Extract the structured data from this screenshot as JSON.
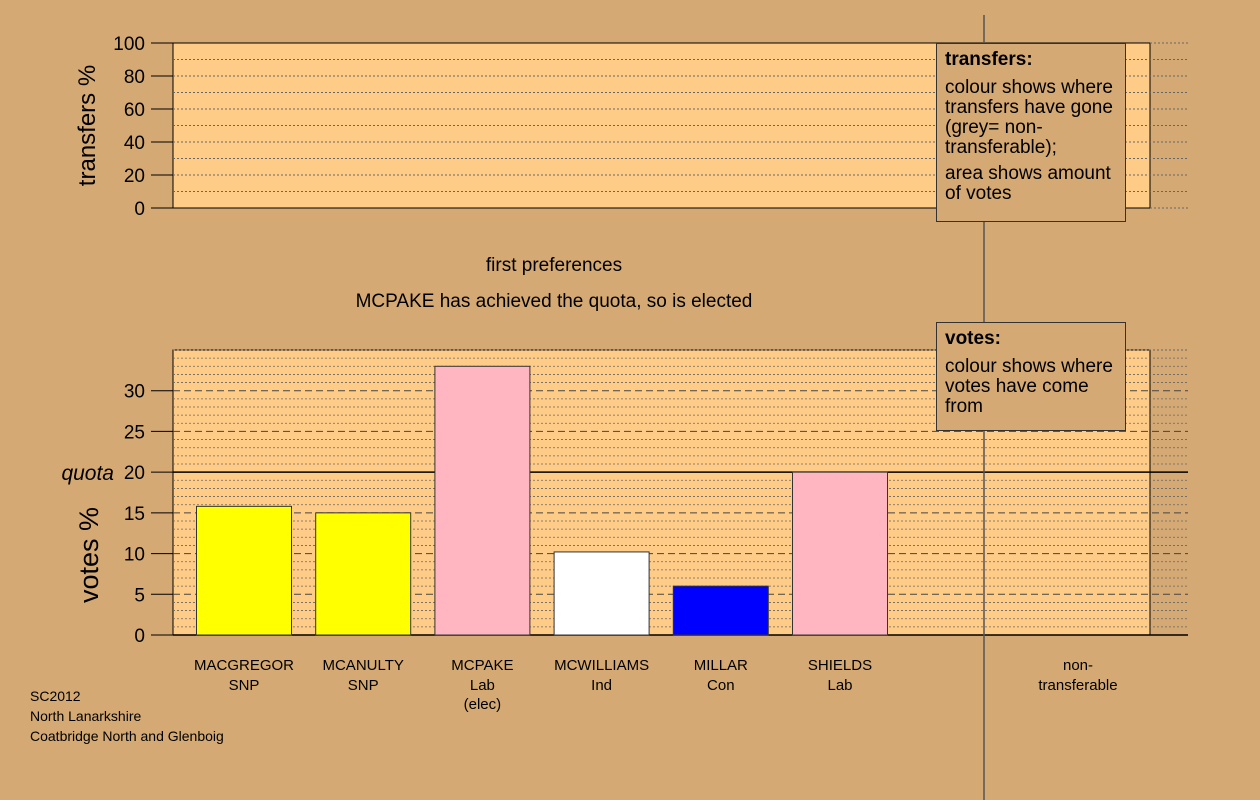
{
  "chart_data": [
    {
      "type": "bar",
      "panel": "transfers",
      "ylabel": "transfers %",
      "ylim": [
        0,
        100
      ],
      "yticks": [
        0,
        20,
        40,
        60,
        80,
        100
      ],
      "values": []
    },
    {
      "type": "bar",
      "panel": "votes",
      "ylabel": "votes %",
      "ylim": [
        0,
        35
      ],
      "yticks": [
        0,
        5,
        10,
        15,
        20,
        25,
        30
      ],
      "quota": 20,
      "quota_label": "quota",
      "categories": [
        {
          "name": "MACGREGOR",
          "party": "SNP",
          "note": "",
          "value": 15.8,
          "color": "#ffff00"
        },
        {
          "name": "MCANULTY",
          "party": "SNP",
          "note": "",
          "value": 15.0,
          "color": "#ffff00"
        },
        {
          "name": "MCPAKE",
          "party": "Lab",
          "note": "(elec)",
          "value": 33.0,
          "color": "#ffb6c1"
        },
        {
          "name": "MCWILLIAMS",
          "party": "Ind",
          "note": "",
          "value": 10.2,
          "color": "#ffffff"
        },
        {
          "name": "MILLAR",
          "party": "Con",
          "note": "",
          "value": 6.0,
          "color": "#0000ff"
        },
        {
          "name": "SHIELDS",
          "party": "Lab",
          "note": "",
          "value": 20.0,
          "color": "#ffb6c1"
        }
      ],
      "nontransferable_label": [
        "non-",
        "transferable"
      ]
    }
  ],
  "stage_title": "first preferences",
  "status": "MCPAKE has achieved the quota, so is elected",
  "legend_transfers": {
    "title": "transfers:",
    "text1": "colour shows where transfers have gone (grey= non-transferable);",
    "text2": "area shows amount of votes"
  },
  "legend_votes": {
    "title": "votes:",
    "text1": "colour shows where votes have come from"
  },
  "footer": {
    "line1": "SC2012",
    "line2": "North Lanarkshire",
    "line3": "Coatbridge North and Glenboig"
  },
  "colors": {
    "background": "#d4a974",
    "panel": "#ffcc88"
  }
}
